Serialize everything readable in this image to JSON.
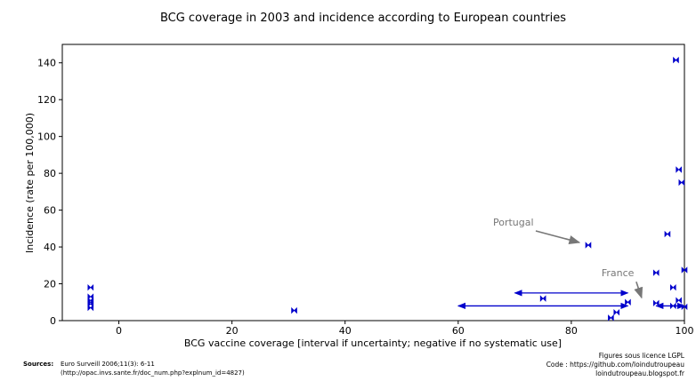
{
  "chart_data": {
    "type": "scatter",
    "title": "BCG coverage in 2003 and incidence according to European countries",
    "xlabel": "BCG vaccine coverage [interval if uncertainty; negative if no systematic use]",
    "ylabel": "Incidence (rate per 100,000)",
    "xlim": [
      -10,
      100
    ],
    "ylim": [
      0,
      150
    ],
    "xticks": [
      0,
      20,
      40,
      60,
      80,
      100
    ],
    "yticks": [
      0,
      20,
      40,
      60,
      80,
      100,
      120,
      140
    ],
    "grid": false,
    "color": "#0000cc",
    "points": [
      {
        "x": -5,
        "y": 18
      },
      {
        "x": -5,
        "y": 13
      },
      {
        "x": -5,
        "y": 11
      },
      {
        "x": -5,
        "y": 10
      },
      {
        "x": -5,
        "y": 9
      },
      {
        "x": -5,
        "y": 7
      },
      {
        "x": 31,
        "y": 5.5
      },
      {
        "x": 75,
        "y": 12
      },
      {
        "x": 83,
        "y": 41
      },
      {
        "x": 87,
        "y": 1.5
      },
      {
        "x": 88,
        "y": 4.5
      },
      {
        "x": 90,
        "y": 10
      },
      {
        "x": 95,
        "y": 26
      },
      {
        "x": 95,
        "y": 9.5
      },
      {
        "x": 97,
        "y": 47
      },
      {
        "x": 98,
        "y": 18
      },
      {
        "x": 98,
        "y": 8
      },
      {
        "x": 98.5,
        "y": 141.5
      },
      {
        "x": 99,
        "y": 82
      },
      {
        "x": 99,
        "y": 11
      },
      {
        "x": 99.5,
        "y": 75
      },
      {
        "x": 100,
        "y": 27.5
      },
      {
        "x": 100,
        "y": 7.5
      }
    ],
    "intervals": [
      {
        "x_from": 70,
        "x_to": 90,
        "y": 15
      },
      {
        "x_from": 60,
        "x_to": 90,
        "y": 8
      },
      {
        "x_from": 95,
        "x_to": 100,
        "y": 8
      }
    ],
    "annotations": [
      {
        "text": "Portugal",
        "x": 83,
        "y": 41
      },
      {
        "text": "France",
        "x": 94,
        "y": 11
      }
    ]
  },
  "footer": {
    "sources_label": "Sources:",
    "source_text": "Euro Surveill 2006;11(3): 6-11",
    "source_url": "(http://opac.invs.sante.fr/doc_num.php?explnum_id=4827)",
    "license": "Figures sous licence LGPL",
    "code": "Code : https://github.com/loindutroupeau",
    "blog": "loindutroupeau.blogspot.fr"
  }
}
